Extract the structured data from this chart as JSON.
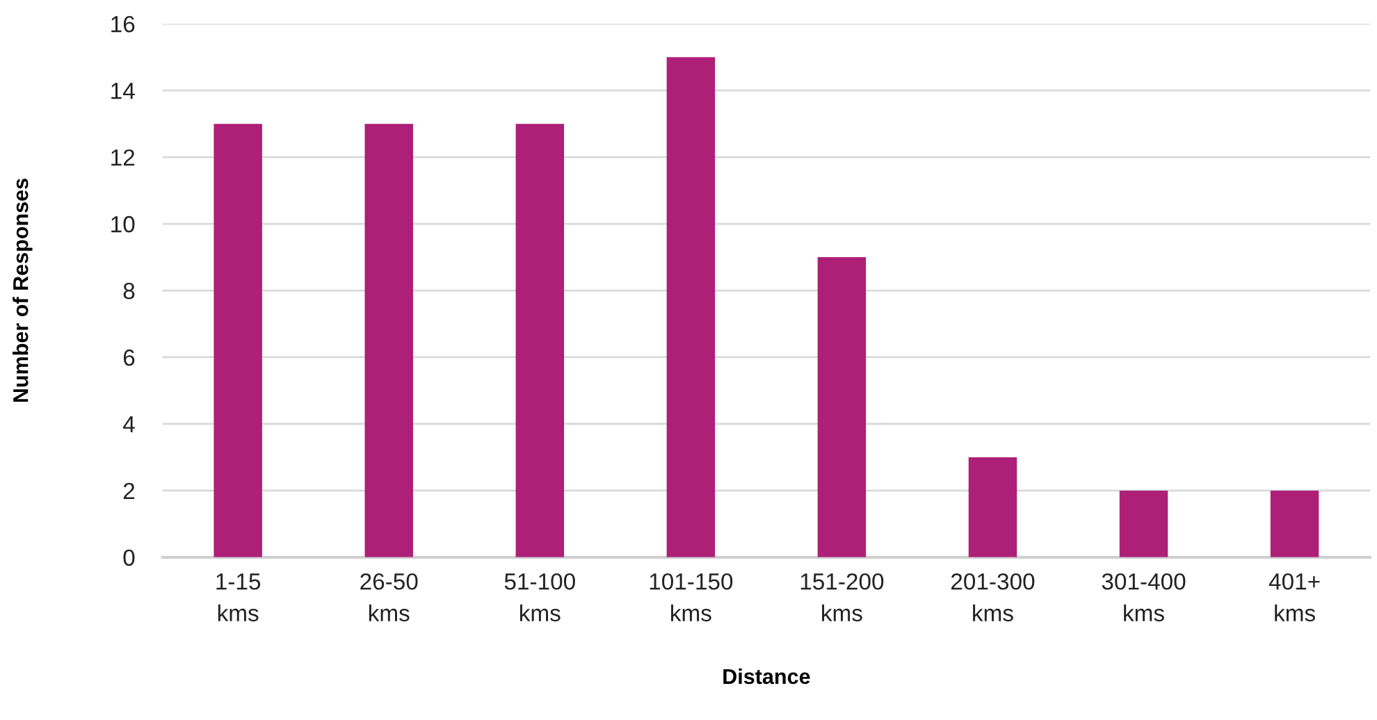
{
  "chart_data": {
    "type": "bar",
    "xlabel": "Distance",
    "ylabel": "Number of Responses",
    "categories": [
      "1-15 kms",
      "26-50 kms",
      "51-100 kms",
      "101-150 kms",
      "151-200 kms",
      "201-300 kms",
      "301-400 kms",
      "401+ kms"
    ],
    "values": [
      13,
      13,
      13,
      15,
      9,
      3,
      2,
      2
    ],
    "color": "#ae1f78",
    "ylim": [
      0,
      16
    ],
    "yticks": [
      0,
      2,
      4,
      6,
      8,
      10,
      12,
      14,
      16
    ],
    "grid": "y",
    "legend": false
  }
}
